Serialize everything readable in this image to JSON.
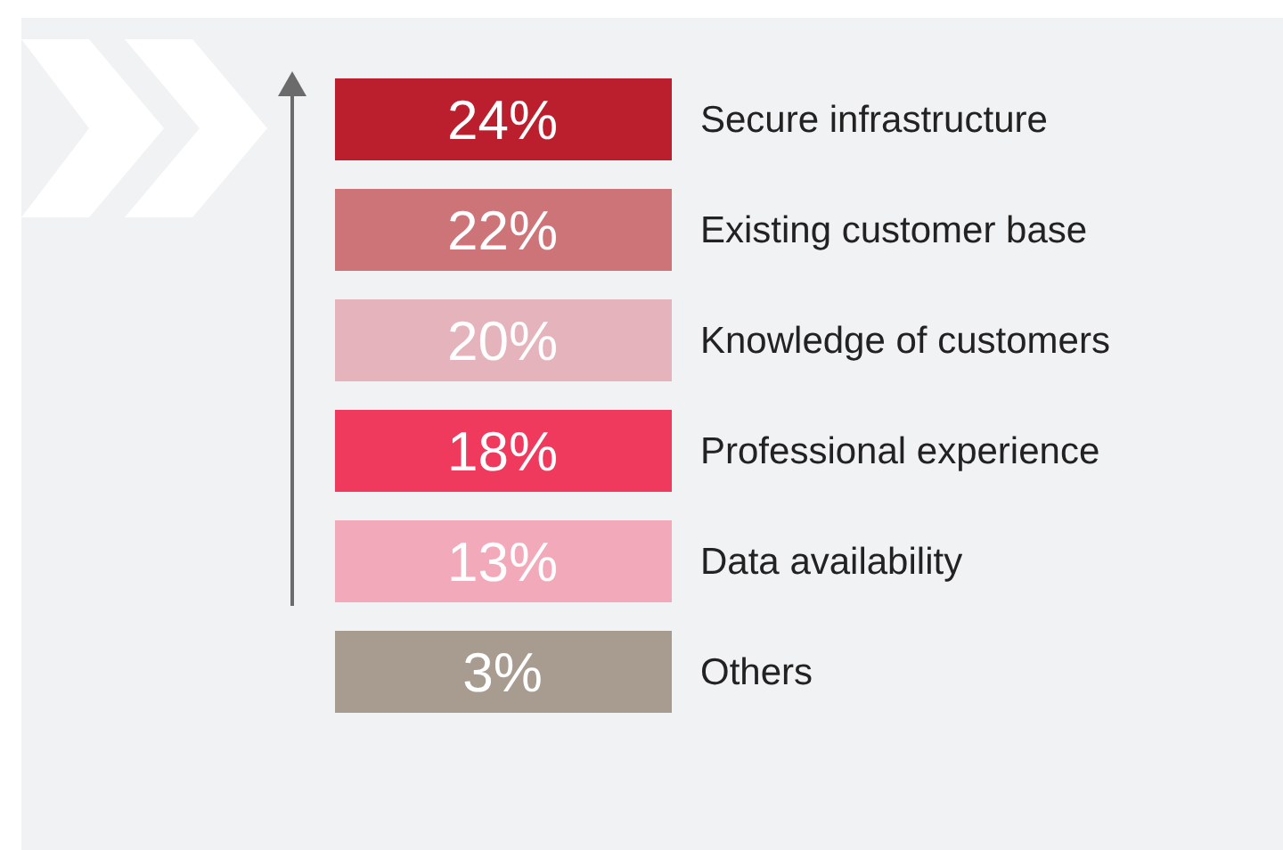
{
  "chart_data": {
    "type": "other",
    "categories": [
      "Secure infrastructure",
      "Existing customer base",
      "Knowledge of customers",
      "Professional experience",
      "Data availability",
      "Others"
    ],
    "values": [
      24,
      22,
      20,
      18,
      13,
      3
    ],
    "value_labels": [
      "24%",
      "22%",
      "20%",
      "18%",
      "13%",
      "3%"
    ],
    "colors": [
      "#bb1f2d",
      "#cd7479",
      "#e4b3bb",
      "#ef3a5d",
      "#f2aabb",
      "#a89b90"
    ]
  }
}
